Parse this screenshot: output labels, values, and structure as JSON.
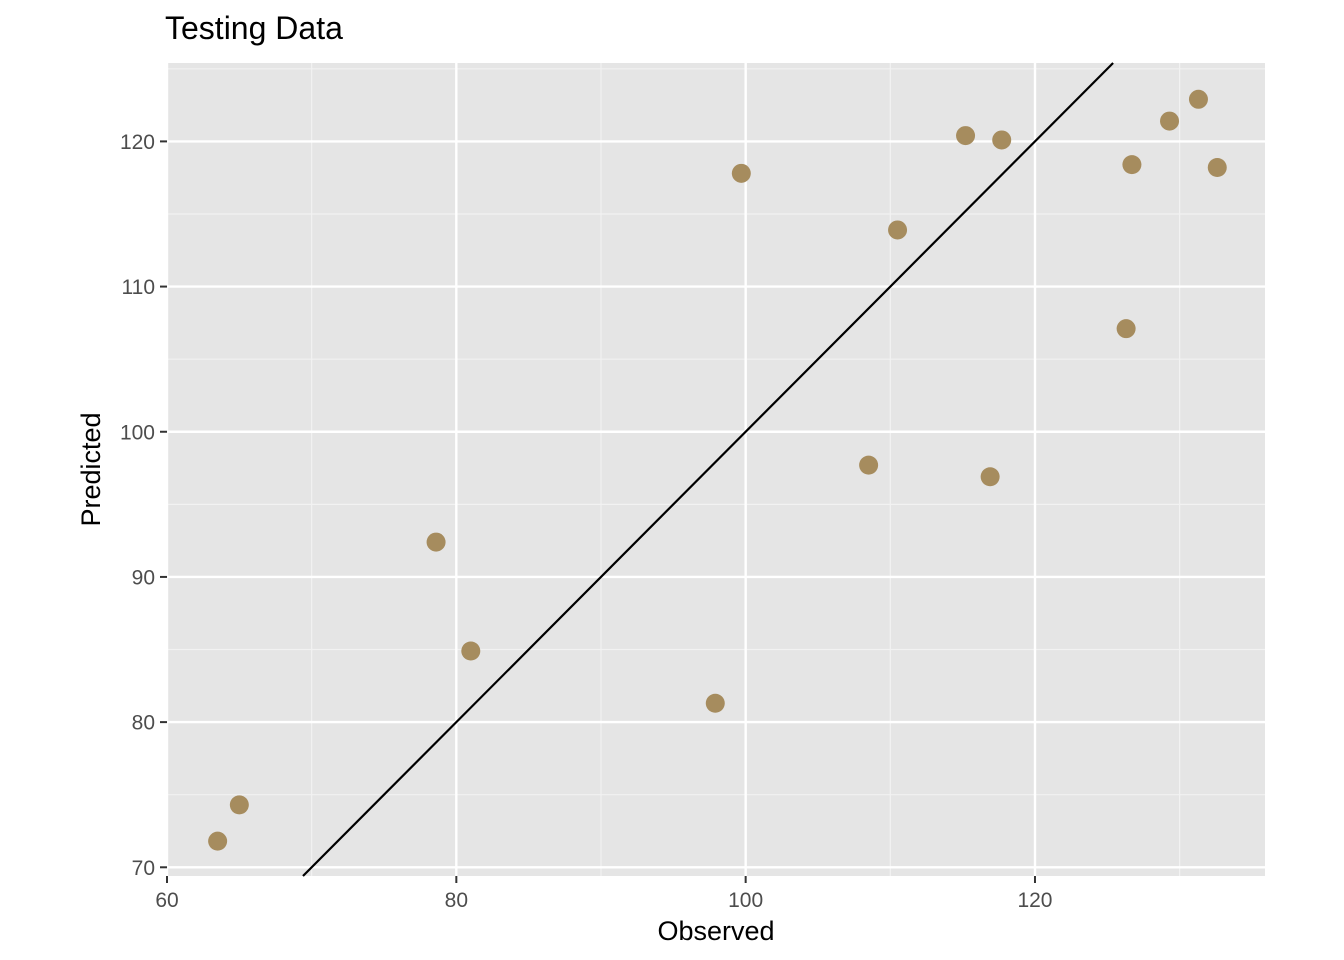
{
  "chart_data": {
    "type": "scatter",
    "title": "Testing Data",
    "xlabel": "Observed",
    "ylabel": "Predicted",
    "xlim": [
      60,
      135.9
    ],
    "ylim": [
      69.4,
      125.4
    ],
    "xticks": [
      60,
      80,
      100,
      120
    ],
    "yticks": [
      70,
      80,
      90,
      100,
      110,
      120
    ],
    "grid": true,
    "point_color": "#a68c5e",
    "panel_color": "#e5e5e5",
    "reference_line": {
      "type": "identity",
      "color": "#000000"
    },
    "points": [
      {
        "x": 63.5,
        "y": 71.8
      },
      {
        "x": 65.0,
        "y": 74.3
      },
      {
        "x": 78.6,
        "y": 92.4
      },
      {
        "x": 81.0,
        "y": 84.9
      },
      {
        "x": 97.9,
        "y": 81.3
      },
      {
        "x": 99.7,
        "y": 117.8
      },
      {
        "x": 108.5,
        "y": 97.7
      },
      {
        "x": 110.5,
        "y": 113.9
      },
      {
        "x": 115.2,
        "y": 120.4
      },
      {
        "x": 116.9,
        "y": 96.9
      },
      {
        "x": 117.7,
        "y": 120.1
      },
      {
        "x": 126.3,
        "y": 107.1
      },
      {
        "x": 126.7,
        "y": 118.4
      },
      {
        "x": 129.3,
        "y": 121.4
      },
      {
        "x": 131.3,
        "y": 122.9
      },
      {
        "x": 132.6,
        "y": 118.2
      }
    ]
  }
}
